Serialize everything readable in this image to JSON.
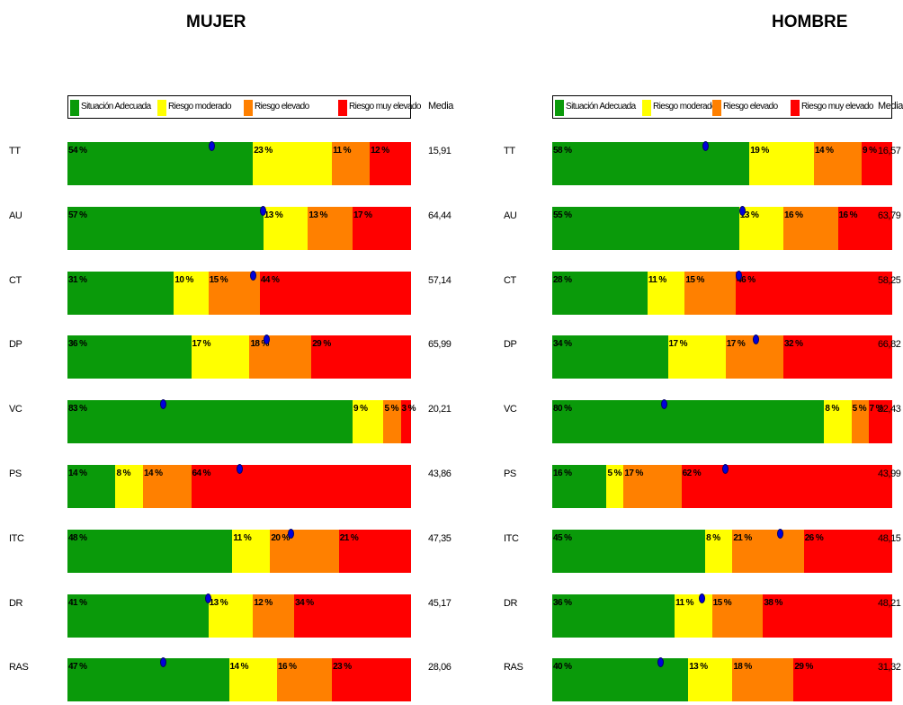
{
  "chart_data": [
    {
      "type": "bar",
      "orientation": "horizontal",
      "stacked": true,
      "title": "MUJER",
      "legend_position": "top",
      "categories": [
        "TT",
        "AU",
        "CT",
        "DP",
        "VC",
        "PS",
        "ITC",
        "DR",
        "RAS"
      ],
      "series": [
        {
          "name": "Situación Adecuada",
          "color": "#0a9a0a",
          "values": [
            54,
            57,
            31,
            36,
            83,
            14,
            48,
            41,
            47
          ]
        },
        {
          "name": "Riesgo moderado",
          "color": "#ffff00",
          "values": [
            23,
            13,
            10,
            17,
            9,
            8,
            11,
            13,
            14
          ]
        },
        {
          "name": "Riesgo elevado",
          "color": "#ff8000",
          "values": [
            11,
            13,
            15,
            18,
            5,
            14,
            20,
            12,
            16
          ]
        },
        {
          "name": "Riesgo muy elevado",
          "color": "#ff0000",
          "values": [
            12,
            17,
            44,
            29,
            3,
            64,
            21,
            34,
            23
          ]
        }
      ],
      "segment_labels": [
        [
          "54 %",
          "23 %",
          "11 %",
          "12 %"
        ],
        [
          "57 %",
          "13 %",
          "13 %",
          "17 %"
        ],
        [
          "31 %",
          "10 %",
          "15 %",
          "44 %"
        ],
        [
          "36 %",
          "17 %",
          "18 %",
          "29 %"
        ],
        [
          "83 %",
          "9 %",
          "5 %",
          "3 %"
        ],
        [
          "14 %",
          "8 %",
          "14 %",
          "64 %"
        ],
        [
          "48 %",
          "11 %",
          "20 %",
          "21 %"
        ],
        [
          "41 %",
          "13 %",
          "12 %",
          "34 %"
        ],
        [
          "47 %",
          "14 %",
          "16 %",
          "23 %"
        ]
      ],
      "marker_positions": [
        42,
        57,
        54,
        58,
        28,
        50,
        65,
        41,
        28
      ],
      "media_label": "Media",
      "media": [
        "15,91",
        "64,44",
        "57,14",
        "65,99",
        "20,21",
        "43,86",
        "47,35",
        "45,17",
        "28,06"
      ],
      "xlim": [
        0,
        100
      ],
      "grid": false
    },
    {
      "type": "bar",
      "orientation": "horizontal",
      "stacked": true,
      "title": "HOMBRE",
      "legend_position": "top",
      "categories": [
        "TT",
        "AU",
        "CT",
        "DP",
        "VC",
        "PS",
        "ITC",
        "DR",
        "RAS"
      ],
      "series": [
        {
          "name": "Situación Adecuada",
          "color": "#0a9a0a",
          "values": [
            58,
            55,
            28,
            34,
            80,
            16,
            45,
            36,
            40
          ]
        },
        {
          "name": "Riesgo moderado",
          "color": "#ffff00",
          "values": [
            19,
            13,
            11,
            17,
            8,
            5,
            8,
            11,
            13
          ]
        },
        {
          "name": "Riesgo elevado",
          "color": "#ff8000",
          "values": [
            14,
            16,
            15,
            17,
            5,
            17,
            21,
            15,
            18
          ]
        },
        {
          "name": "Riesgo muy elevado",
          "color": "#ff0000",
          "values": [
            9,
            16,
            46,
            32,
            7,
            62,
            26,
            38,
            29
          ]
        }
      ],
      "segment_labels": [
        [
          "58 %",
          "19 %",
          "14 %",
          "9 %"
        ],
        [
          "55 %",
          "13 %",
          "16 %",
          "16 %"
        ],
        [
          "28 %",
          "11 %",
          "15 %",
          "46 %"
        ],
        [
          "34 %",
          "17 %",
          "17 %",
          "32 %"
        ],
        [
          "80 %",
          "8 %",
          "5 %",
          "7 %"
        ],
        [
          "16 %",
          "5 %",
          "17 %",
          "62 %"
        ],
        [
          "45 %",
          "8 %",
          "21 %",
          "26 %"
        ],
        [
          "36 %",
          "11 %",
          "15 %",
          "38 %"
        ],
        [
          "40 %",
          "13 %",
          "18 %",
          "29 %"
        ]
      ],
      "marker_positions": [
        45,
        56,
        55,
        60,
        33,
        51,
        67,
        44,
        32
      ],
      "media_label": "Media",
      "media": [
        "16,57",
        "63,79",
        "58,25",
        "66,82",
        "22,43",
        "43,99",
        "48,15",
        "48,21",
        "31,32"
      ],
      "xlim": [
        0,
        100
      ],
      "grid": false
    }
  ]
}
